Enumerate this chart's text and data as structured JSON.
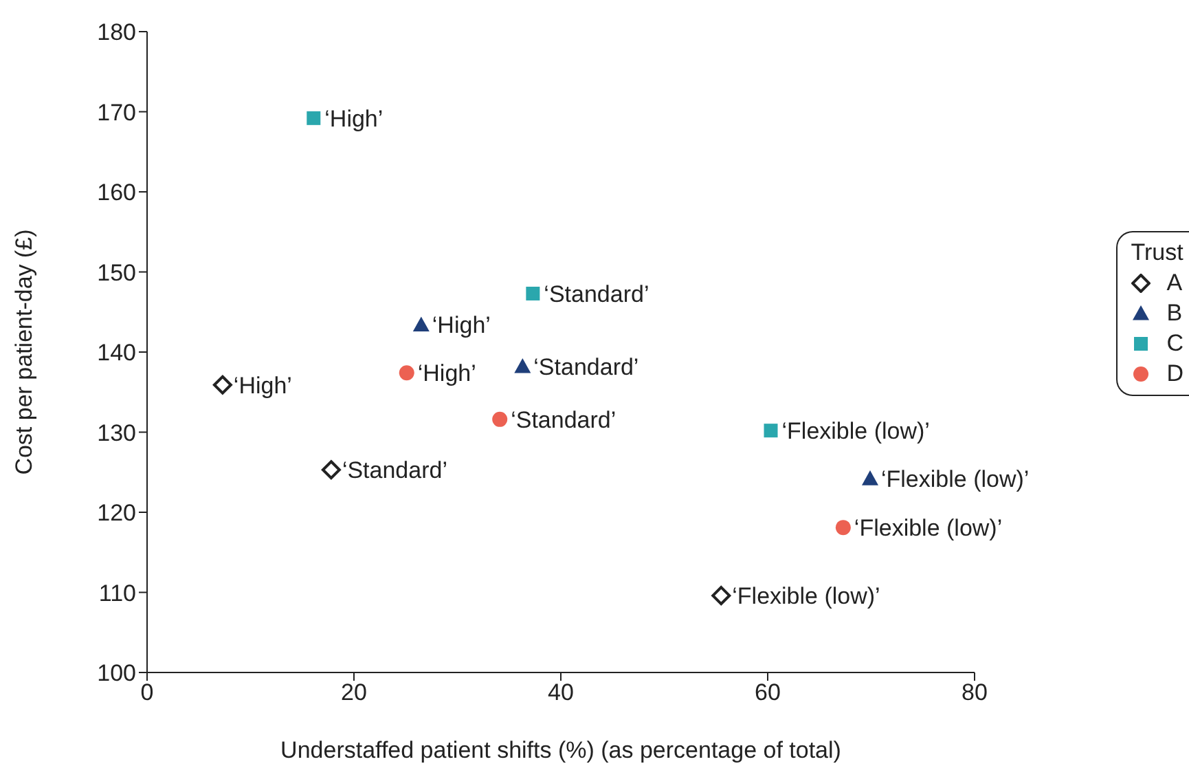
{
  "chart_data": {
    "type": "scatter",
    "xlabel": "Understaffed patient shifts (%) (as percentage of total)",
    "ylabel": "Cost per patient-day (£)",
    "legend_title": "Trust",
    "legend": "right",
    "grid": false,
    "xlim": [
      0,
      80
    ],
    "xticks": [
      0,
      20,
      40,
      60,
      80
    ],
    "ylim": [
      100,
      180
    ],
    "yticks": [
      100,
      110,
      120,
      130,
      140,
      150,
      160,
      170,
      180
    ],
    "series": [
      {
        "name": "A",
        "color": "#222222",
        "marker": "diamond",
        "x": [
          7.3,
          17.8,
          55.5
        ],
        "values": [
          135.9,
          125.3,
          109.6
        ]
      },
      {
        "name": "B",
        "color": "#1f3f7a",
        "marker": "triangle",
        "x": [
          26.5,
          36.3,
          69.9
        ],
        "values": [
          143.4,
          138.2,
          124.2
        ]
      },
      {
        "name": "C",
        "color": "#2aa7ad",
        "marker": "square",
        "x": [
          16.1,
          37.3,
          60.3
        ],
        "values": [
          169.2,
          147.3,
          130.2
        ]
      },
      {
        "name": "D",
        "color": "#ec6152",
        "marker": "circle",
        "x": [
          25.1,
          34.1,
          67.3
        ],
        "values": [
          137.4,
          131.6,
          118.1
        ]
      }
    ],
    "annotations": [
      {
        "text": "‘High’",
        "x": 7.3,
        "y": 135.9
      },
      {
        "text": "‘Standard’",
        "x": 17.8,
        "y": 125.3
      },
      {
        "text": "‘Flexible (low)’",
        "x": 55.5,
        "y": 109.6
      },
      {
        "text": "‘High’",
        "x": 26.5,
        "y": 143.4
      },
      {
        "text": "‘Standard’",
        "x": 36.3,
        "y": 138.2
      },
      {
        "text": "‘Flexible (low)’",
        "x": 69.9,
        "y": 124.2
      },
      {
        "text": "‘High’",
        "x": 16.1,
        "y": 169.2
      },
      {
        "text": "‘Standard’",
        "x": 37.3,
        "y": 147.3
      },
      {
        "text": "‘Flexible (low)’",
        "x": 60.3,
        "y": 130.2
      },
      {
        "text": "‘High’",
        "x": 25.1,
        "y": 137.4
      },
      {
        "text": "‘Standard’",
        "x": 34.1,
        "y": 131.6
      },
      {
        "text": "‘Flexible (low)’",
        "x": 67.3,
        "y": 118.1
      }
    ]
  }
}
